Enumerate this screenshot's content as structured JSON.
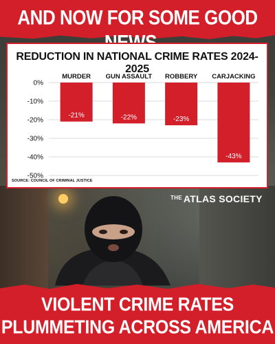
{
  "header": {
    "title": "AND NOW FOR SOME GOOD NEWS..."
  },
  "chart_data": {
    "type": "bar",
    "title": "REDUCTION IN NATIONAL CRIME RATES 2024-2025",
    "categories": [
      "MURDER",
      "GUN ASSAULT",
      "ROBBERY",
      "CARJACKING"
    ],
    "values": [
      -21,
      -22,
      -23,
      -43
    ],
    "value_labels": [
      "-21%",
      "-22%",
      "-23%",
      "-43%"
    ],
    "ylim": [
      -50,
      0
    ],
    "yticks": [
      0,
      -10,
      -20,
      -30,
      -40,
      -50
    ],
    "ytick_labels": [
      "0%",
      "-10%",
      "-20%",
      "-30%",
      "-40%",
      "-50%"
    ],
    "grid": true,
    "bar_color": "#d31f2a",
    "source": "SOURCE: COUNCIL OF CRIMINAL JUSTICE"
  },
  "brand": {
    "prefix": "THE",
    "name": "ATLAS SOCIETY"
  },
  "footer": {
    "line1": "VIOLENT CRIME RATES",
    "line2": "PLUMMETING ACROSS AMERICA"
  },
  "colors": {
    "accent": "#d31f2a",
    "text_on_accent": "#ffffff"
  }
}
